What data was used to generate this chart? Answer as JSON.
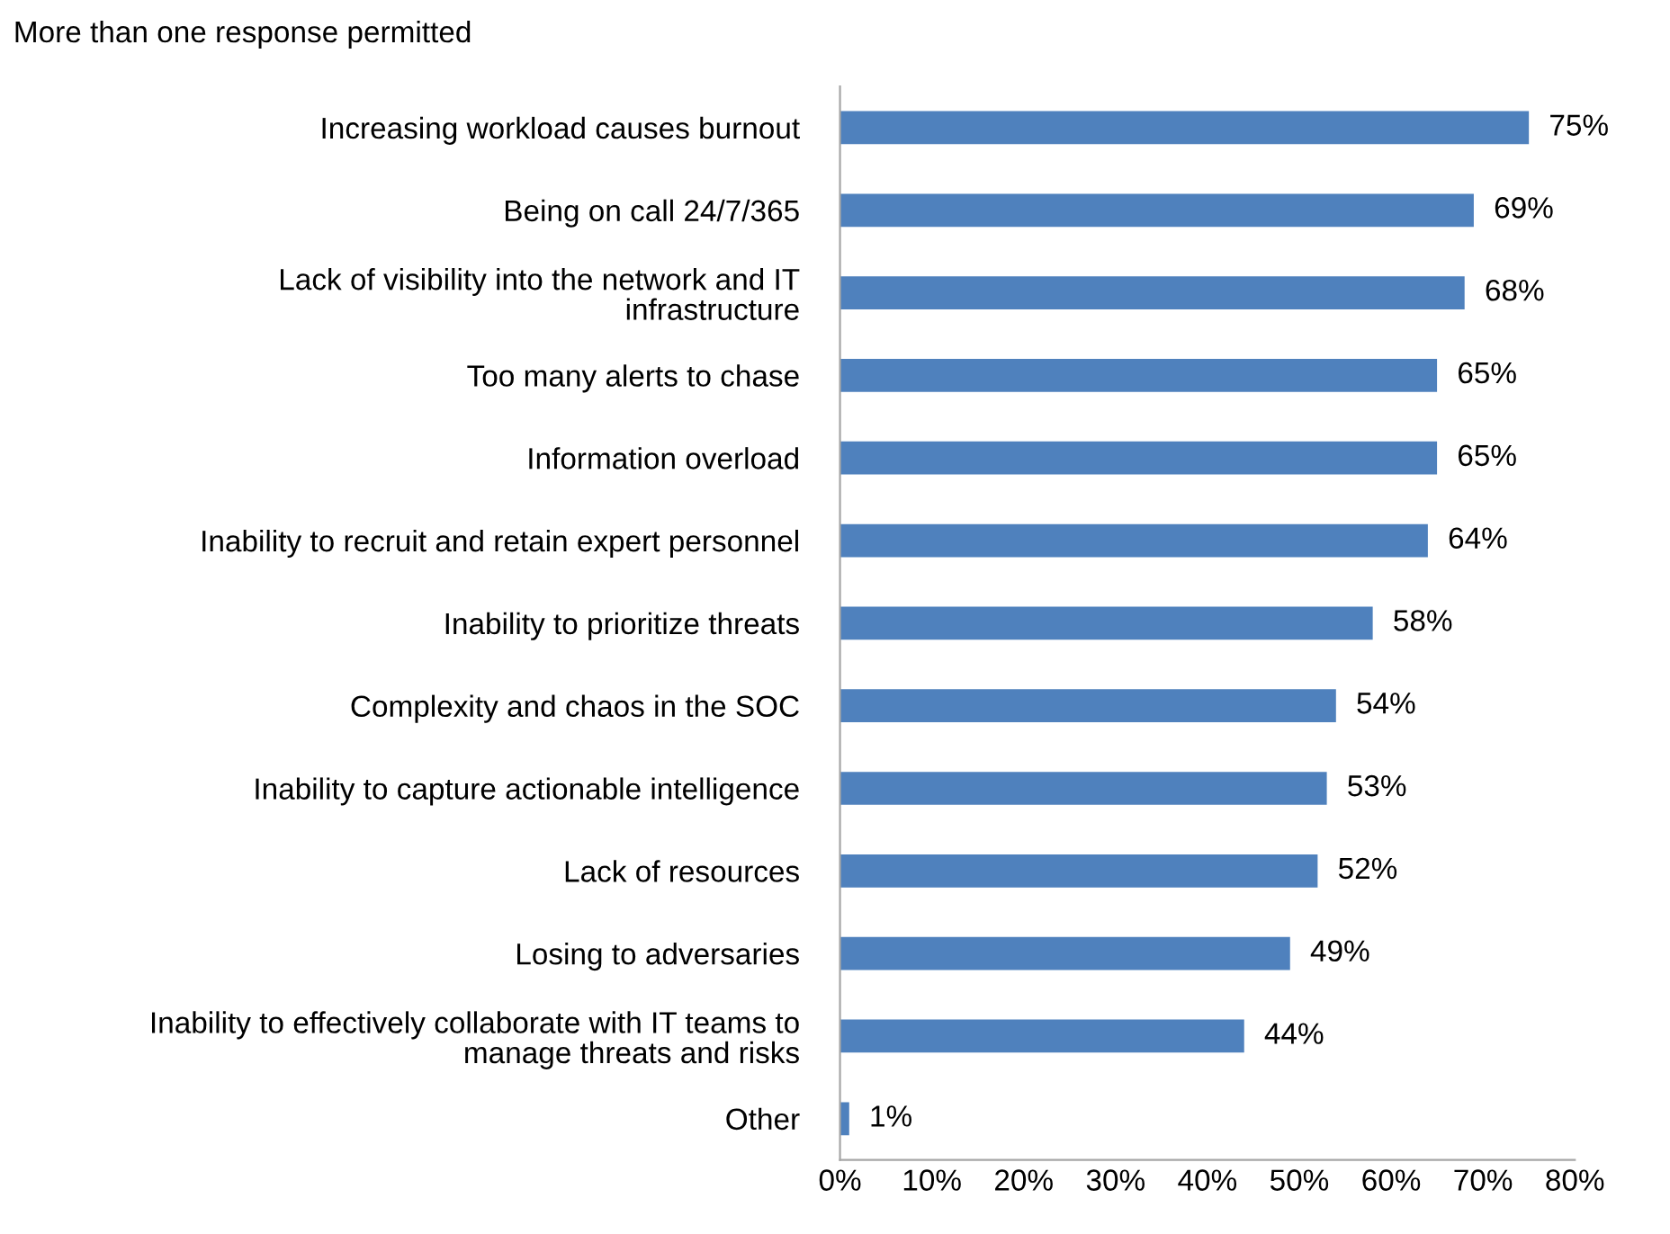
{
  "chart_data": {
    "type": "bar",
    "orientation": "horizontal",
    "title": "More than one response permitted",
    "categories": [
      "Increasing workload causes burnout",
      "Being on call 24/7/365",
      "Lack of visibility into the network and IT\ninfrastructure",
      "Too many alerts to chase",
      "Information overload",
      "Inability to recruit and retain expert personnel",
      "Inability to prioritize threats",
      "Complexity and chaos in the SOC",
      "Inability to capture actionable intelligence",
      "Lack of resources",
      "Losing to adversaries",
      "Inability to effectively collaborate with IT teams to\nmanage threats and risks",
      "Other"
    ],
    "values": [
      75,
      69,
      68,
      65,
      65,
      64,
      58,
      54,
      53,
      52,
      49,
      44,
      1
    ],
    "value_labels": [
      "75%",
      "69%",
      "68%",
      "65%",
      "65%",
      "64%",
      "58%",
      "54%",
      "53%",
      "52%",
      "49%",
      "44%",
      "1%"
    ],
    "color": "#4f81bd",
    "xlim": [
      0,
      80
    ],
    "xticks": [
      {
        "value": 0,
        "label": "0%"
      },
      {
        "value": 10,
        "label": "10%"
      },
      {
        "value": 20,
        "label": "20%"
      },
      {
        "value": 30,
        "label": "30%"
      },
      {
        "value": 40,
        "label": "40%"
      },
      {
        "value": 50,
        "label": "50%"
      },
      {
        "value": 60,
        "label": "60%"
      },
      {
        "value": 70,
        "label": "70%"
      },
      {
        "value": 80,
        "label": "80%"
      }
    ]
  }
}
